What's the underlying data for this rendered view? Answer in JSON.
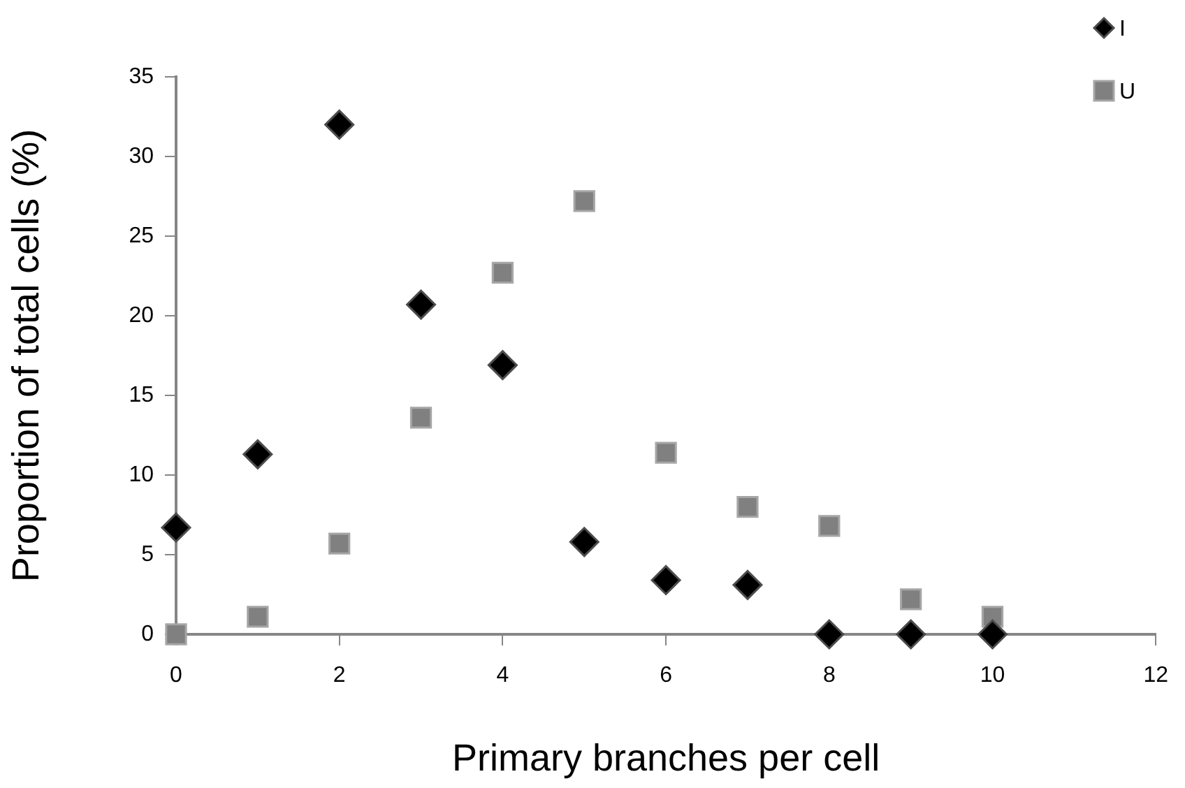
{
  "chart_data": {
    "type": "scatter",
    "xlabel": "Primary branches per cell",
    "ylabel": "Proportion of total cells (%)",
    "xlim": [
      0,
      12
    ],
    "xticks": [
      0,
      2,
      4,
      6,
      8,
      10,
      12
    ],
    "ylim": [
      0,
      35
    ],
    "yticks": [
      0,
      5,
      10,
      15,
      20,
      25,
      30,
      35
    ],
    "grid": false,
    "legend": "top right",
    "series": [
      {
        "name": "I",
        "color": "#000000",
        "marker": "diamond",
        "x": [
          0,
          1,
          2,
          3,
          4,
          5,
          6,
          7,
          8,
          9,
          10
        ],
        "values": [
          6.7,
          11.3,
          32,
          20.7,
          16.9,
          5.8,
          3.4,
          3.1,
          0,
          0,
          0
        ]
      },
      {
        "name": "U",
        "color": "#808080",
        "marker": "square",
        "x": [
          0,
          1,
          2,
          3,
          4,
          5,
          6,
          7,
          8,
          9,
          10
        ],
        "values": [
          0,
          1.1,
          5.7,
          13.6,
          22.7,
          27.2,
          11.4,
          8.0,
          6.8,
          2.2,
          1.1
        ]
      }
    ]
  }
}
